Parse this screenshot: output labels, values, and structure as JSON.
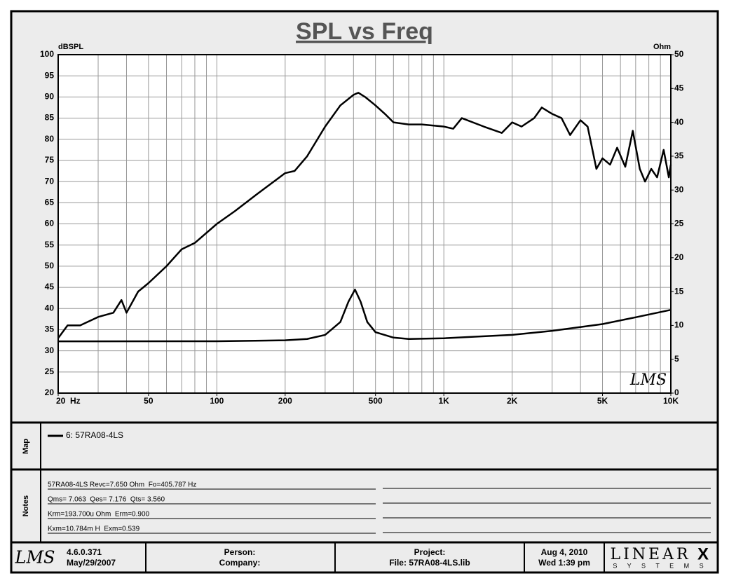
{
  "chart_data": {
    "type": "line",
    "title": "SPL vs Freq",
    "y_label": "dBSPL",
    "y2_label": "Ohm",
    "watermark": "LMS",
    "x_scale": "log",
    "grid": true,
    "xlim": [
      20,
      10000
    ],
    "ylim": [
      20,
      100
    ],
    "y2lim": [
      0,
      50
    ],
    "xticks": [
      {
        "value": 20,
        "label": "20  Hz"
      },
      50,
      100,
      200,
      500,
      {
        "value": 1000,
        "label": "1K"
      },
      {
        "value": 2000,
        "label": "2K"
      },
      {
        "value": 5000,
        "label": "5K"
      },
      {
        "value": 10000,
        "label": "10K"
      }
    ],
    "xgrid": [
      20,
      30,
      40,
      50,
      60,
      70,
      80,
      90,
      100,
      200,
      300,
      400,
      500,
      600,
      700,
      800,
      900,
      1000,
      2000,
      3000,
      4000,
      5000,
      6000,
      7000,
      8000,
      9000,
      10000
    ],
    "yticks": [
      20,
      25,
      30,
      35,
      40,
      45,
      50,
      55,
      60,
      65,
      70,
      75,
      80,
      85,
      90,
      95,
      100
    ],
    "y2ticks": [
      0,
      5,
      10,
      15,
      20,
      25,
      30,
      35,
      40,
      45,
      50
    ],
    "series": [
      {
        "name": "6: 57RA08-4LS",
        "color": "#000000",
        "x": [
          20,
          22,
          25,
          30,
          35,
          38,
          40,
          45,
          50,
          60,
          70,
          80,
          100,
          120,
          150,
          200,
          220,
          250,
          300,
          350,
          400,
          420,
          450,
          500,
          550,
          600,
          700,
          800,
          1000,
          1100,
          1200,
          1500,
          1800,
          2000,
          2200,
          2500,
          2700,
          3000,
          3300,
          3600,
          4000,
          4300,
          4700,
          5000,
          5400,
          5800,
          6300,
          6800,
          7300,
          7700,
          8200,
          8700,
          9300,
          9800,
          10000
        ],
        "values": [
          33,
          36,
          36,
          38,
          39,
          42,
          39,
          44,
          46,
          50,
          54,
          55.5,
          60,
          63,
          67,
          72,
          72.5,
          76,
          83,
          88,
          90.5,
          91,
          90,
          88,
          86,
          84,
          83.5,
          83.5,
          83,
          82.5,
          85,
          83,
          81.5,
          84,
          83,
          85,
          87.5,
          86,
          85,
          81,
          84.5,
          83,
          73,
          75.5,
          74,
          78,
          73.5,
          82,
          73,
          70,
          73,
          71,
          77.5,
          71,
          74
        ]
      },
      {
        "axis": "y2",
        "color": "#000000",
        "x": [
          20,
          100,
          200,
          250,
          300,
          350,
          380,
          406,
          430,
          460,
          500,
          600,
          700,
          1000,
          2000,
          3000,
          5000,
          7000,
          10000
        ],
        "values": [
          7.65,
          7.66,
          7.8,
          8.0,
          8.6,
          10.5,
          13.5,
          15.3,
          13.5,
          10.5,
          9.0,
          8.2,
          8.0,
          8.1,
          8.6,
          9.2,
          10.2,
          11.2,
          12.3
        ]
      }
    ]
  },
  "panels": {
    "map_label": "Map",
    "notes_label": "Notes",
    "notes": [
      "57RA08-4LS Revc=7.650 Ohm  Fo=405.787 Hz",
      "Qms= 7.063  Qes= 7.176  Qts= 3.560",
      "Krm=193.700u Ohm  Erm=0.900",
      "Kxm=10.784m H  Exm=0.539"
    ]
  },
  "footer": {
    "logo": "LMS",
    "version": "4.6.0.371",
    "version_date": "May/29/2007",
    "person": "Person:",
    "company": "Company:",
    "project": "Project:",
    "file": "File: 57RA08-4LS.lib",
    "date": "Aug  4, 2010",
    "time": "Wed  1:39 pm",
    "brand": "LINEAR",
    "brand_x": "X",
    "brand_sub": "S Y S T E M S"
  }
}
